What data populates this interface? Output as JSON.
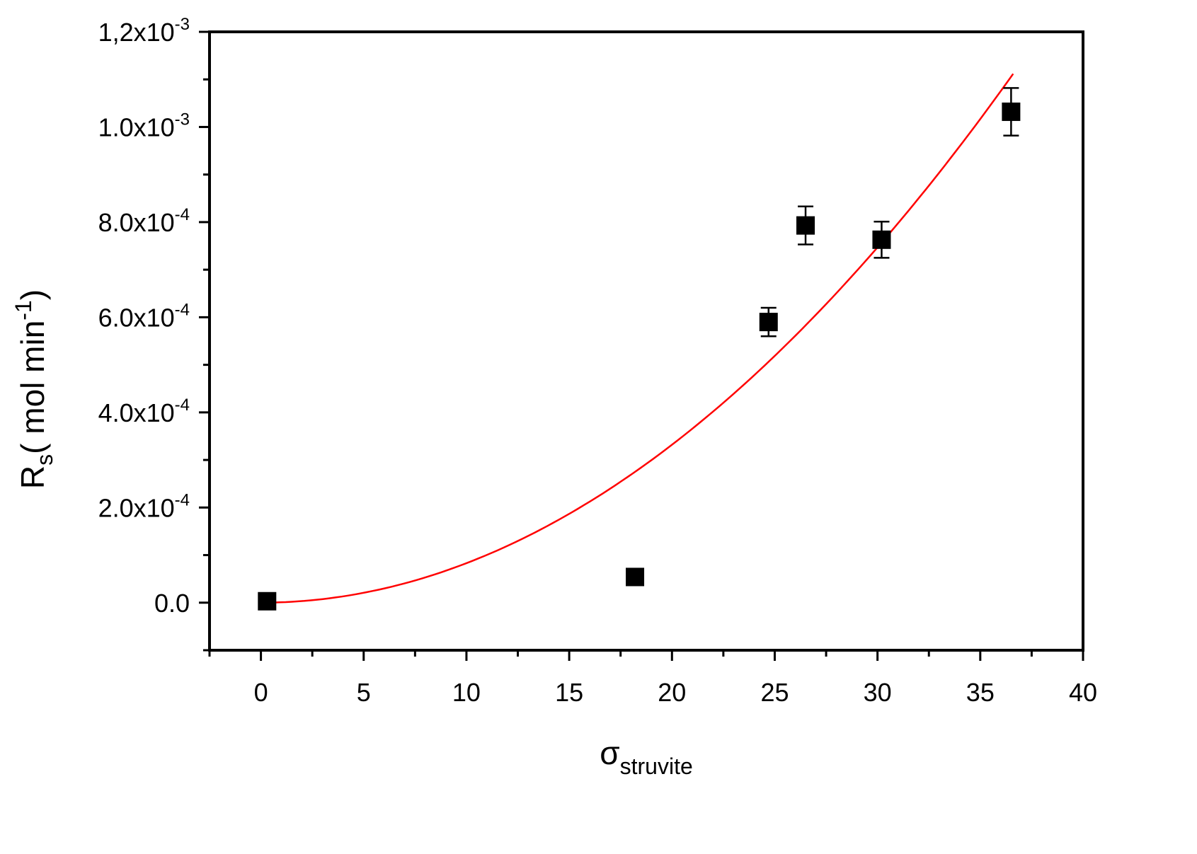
{
  "chart_data": {
    "type": "scatter",
    "xlabel": {
      "main": "σ",
      "sub": "struvite"
    },
    "ylabel": {
      "main": "R",
      "sub": "s",
      "rest": "( mol min",
      "sup": "-1",
      "close": ")"
    },
    "xlim": [
      -2.5,
      40
    ],
    "ylim": [
      -0.0001,
      0.0012
    ],
    "x_ticks": [
      {
        "value": 0,
        "label": "0"
      },
      {
        "value": 5,
        "label": "5"
      },
      {
        "value": 10,
        "label": "10"
      },
      {
        "value": 15,
        "label": "15"
      },
      {
        "value": 20,
        "label": "20"
      },
      {
        "value": 25,
        "label": "25"
      },
      {
        "value": 30,
        "label": "30"
      },
      {
        "value": 35,
        "label": "35"
      },
      {
        "value": 40,
        "label": "40"
      }
    ],
    "y_ticks": [
      {
        "value": 0,
        "mantissa": "0.0",
        "exp": ""
      },
      {
        "value": 0.0002,
        "mantissa": "2.0x10",
        "exp": "-4"
      },
      {
        "value": 0.0004,
        "mantissa": "4.0x10",
        "exp": "-4"
      },
      {
        "value": 0.0006,
        "mantissa": "6.0x10",
        "exp": "-4"
      },
      {
        "value": 0.0008,
        "mantissa": "8.0x10",
        "exp": "-4"
      },
      {
        "value": 0.001,
        "mantissa": "1.0x10",
        "exp": "-3"
      },
      {
        "value": 0.0012,
        "mantissa": "1,2x10",
        "exp": "-3"
      }
    ],
    "grid": false,
    "series": [
      {
        "kind": "points",
        "marker": "square",
        "color": "#000000",
        "points": [
          {
            "x": 0.3,
            "y": 3e-06,
            "err": 0
          },
          {
            "x": 18.2,
            "y": 5.4e-05,
            "err": 0
          },
          {
            "x": 24.7,
            "y": 0.00059,
            "err": 3e-05
          },
          {
            "x": 26.5,
            "y": 0.000793,
            "err": 4e-05
          },
          {
            "x": 30.2,
            "y": 0.000763,
            "err": 3.8e-05
          },
          {
            "x": 36.5,
            "y": 0.001032,
            "err": 5e-05
          }
        ]
      },
      {
        "kind": "fit",
        "color": "#ff0000",
        "x_range": [
          0.3,
          36.6
        ],
        "coefficient": 8.3e-07,
        "exponent": 2
      }
    ]
  }
}
